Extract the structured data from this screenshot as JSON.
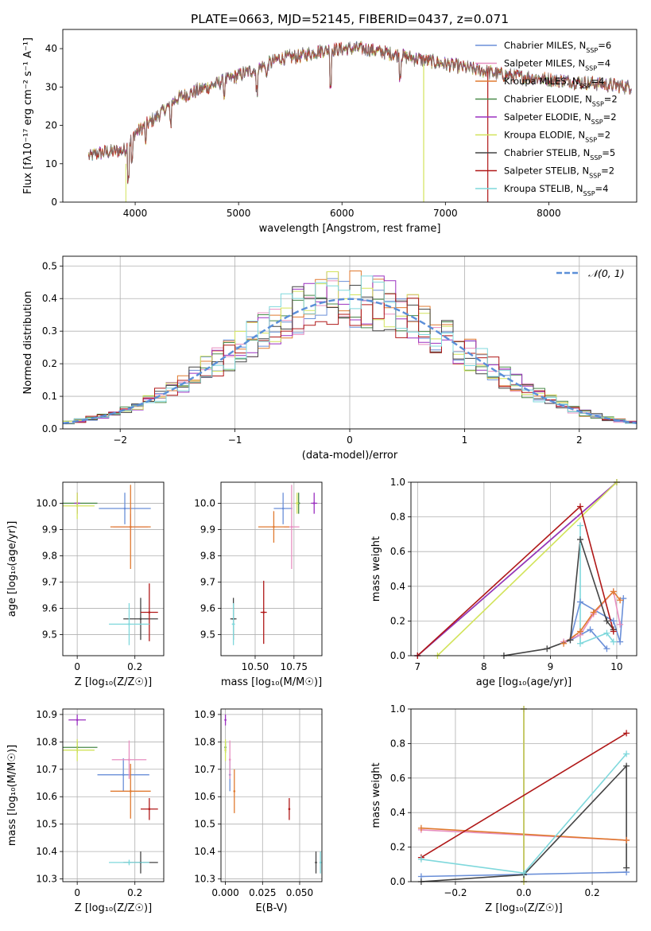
{
  "figure": {
    "title": "PLATE=0663, MJD=52145, FIBERID=0437, z=0.071"
  },
  "palette": {
    "chabrier_miles": "#6a8fd8",
    "salpeter_miles": "#e78fc0",
    "kroupa_miles": "#e07a30",
    "chabrier_elodie": "#4a8a4a",
    "salpeter_elodie": "#9b30c0",
    "kroupa_elodie": "#d2e35a",
    "chabrier_stelib": "#444444",
    "salpeter_stelib": "#b01818",
    "kroupa_stelib": "#7fd8dc",
    "gaussian": "#5b8fd8"
  },
  "chart_data": [
    {
      "id": "spectrum",
      "type": "line",
      "xlabel": "wavelength [Angstrom, rest frame]",
      "ylabel": "Flux [fλ10⁻¹⁷ erg cm⁻² s⁻¹ A⁻¹]",
      "xlim": [
        3300,
        8850
      ],
      "ylim": [
        0,
        45
      ],
      "xticks": [
        4000,
        5000,
        6000,
        7000,
        8000
      ],
      "yticks": [
        0,
        10,
        20,
        30,
        40
      ],
      "grid": false,
      "legend_position": "top-right",
      "legend": [
        {
          "name": "Chabrier MILES, N",
          "sub": "SSP",
          "suffix": "=6",
          "color_key": "chabrier_miles"
        },
        {
          "name": "Salpeter MILES, N",
          "sub": "SSP",
          "suffix": "=4",
          "color_key": "salpeter_miles"
        },
        {
          "name": "Kroupa MILES, N",
          "sub": "SSP",
          "suffix": "=4",
          "color_key": "kroupa_miles"
        },
        {
          "name": "Chabrier ELODIE, N",
          "sub": "SSP",
          "suffix": "=2",
          "color_key": "chabrier_elodie"
        },
        {
          "name": "Salpeter ELODIE, N",
          "sub": "SSP",
          "suffix": "=2",
          "color_key": "salpeter_elodie"
        },
        {
          "name": "Kroupa ELODIE, N",
          "sub": "SSP",
          "suffix": "=2",
          "color_key": "kroupa_elodie"
        },
        {
          "name": "Chabrier STELIB, N",
          "sub": "SSP",
          "suffix": "=5",
          "color_key": "chabrier_stelib"
        },
        {
          "name": "Salpeter STELIB, N",
          "sub": "SSP",
          "suffix": "=2",
          "color_key": "salpeter_stelib"
        },
        {
          "name": "Kroupa STELIB, N",
          "sub": "SSP",
          "suffix": "=4",
          "color_key": "kroupa_stelib"
        }
      ],
      "continuum": [
        [
          3550,
          12
        ],
        [
          3700,
          13
        ],
        [
          3900,
          13.5
        ],
        [
          4000,
          18
        ],
        [
          4200,
          22
        ],
        [
          4400,
          27
        ],
        [
          4600,
          29
        ],
        [
          4800,
          31
        ],
        [
          5000,
          33
        ],
        [
          5200,
          35
        ],
        [
          5400,
          37.5
        ],
        [
          5600,
          38
        ],
        [
          5800,
          39.5
        ],
        [
          6000,
          40
        ],
        [
          6200,
          40
        ],
        [
          6400,
          39
        ],
        [
          6600,
          38
        ],
        [
          6800,
          37
        ],
        [
          7000,
          36
        ],
        [
          7200,
          35
        ],
        [
          7400,
          34
        ],
        [
          7600,
          33
        ],
        [
          7800,
          32.5
        ],
        [
          8000,
          32
        ],
        [
          8200,
          31.5
        ],
        [
          8400,
          31
        ],
        [
          8600,
          30.5
        ],
        [
          8800,
          30
        ]
      ]
    },
    {
      "id": "residuals",
      "type": "line",
      "xlabel": "(data-model)/error",
      "ylabel": "Normed distribution",
      "xlim": [
        -2.5,
        2.5
      ],
      "ylim": [
        0,
        0.53
      ],
      "xticks": [
        -2,
        -1,
        0,
        1,
        2
      ],
      "yticks": [
        0.0,
        0.1,
        0.2,
        0.3,
        0.4,
        0.5
      ],
      "grid": true,
      "legend_position": "top-right",
      "legend_label": "𝒩(0, 1)",
      "hist_bin_width": 0.1
    },
    {
      "id": "age_vs_Z",
      "type": "scatter",
      "xlabel": "Z [log₁₀(Z/Z☉)]",
      "ylabel": "age  [log₁₀(age/yr)]",
      "xlim": [
        -0.05,
        0.3
      ],
      "ylim": [
        9.42,
        10.08
      ],
      "xticks": [
        0.0,
        0.2
      ],
      "yticks": [
        9.5,
        9.6,
        9.7,
        9.8,
        9.9,
        10.0
      ],
      "grid": true,
      "points": [
        {
          "color_key": "chabrier_miles",
          "x": 0.165,
          "y": 9.98,
          "xerr": 0.09,
          "yerr": 0.06
        },
        {
          "color_key": "salpeter_miles",
          "x": 0.185,
          "y": 9.91,
          "xerr": 0.06,
          "yerr": 0.05
        },
        {
          "color_key": "kroupa_miles",
          "x": 0.185,
          "y": 9.91,
          "xerr": 0.07,
          "yerr": 0.16
        },
        {
          "color_key": "chabrier_elodie",
          "x": 0.0,
          "y": 10.0,
          "xerr": 0.07,
          "yerr": 0.01
        },
        {
          "color_key": "salpeter_elodie",
          "x": 0.0,
          "y": 10.0,
          "xerr": 0.01,
          "yerr": 0.04
        },
        {
          "color_key": "kroupa_elodie",
          "x": 0.0,
          "y": 9.99,
          "xerr": 0.06,
          "yerr": 0.05
        },
        {
          "color_key": "chabrier_stelib",
          "x": 0.22,
          "y": 9.56,
          "xerr": 0.06,
          "yerr": 0.08
        },
        {
          "color_key": "salpeter_stelib",
          "x": 0.25,
          "y": 9.585,
          "xerr": 0.03,
          "yerr": 0.11
        },
        {
          "color_key": "kroupa_stelib",
          "x": 0.18,
          "y": 9.54,
          "xerr": 0.07,
          "yerr": 0.08
        }
      ]
    },
    {
      "id": "age_vs_mass",
      "type": "scatter",
      "xlabel": "mass [log₁₀(M/M☉)]",
      "ylabel": "",
      "xlim": [
        10.28,
        10.93
      ],
      "ylim": [
        9.42,
        10.08
      ],
      "xticks": [
        10.5,
        10.75
      ],
      "xticklabels": [
        "10.50",
        "10.75"
      ],
      "yticks": [
        9.5,
        9.6,
        9.7,
        9.8,
        9.9,
        10.0
      ],
      "grid": true,
      "points": [
        {
          "color_key": "chabrier_miles",
          "x": 10.68,
          "y": 9.98,
          "xerr": 0.06,
          "yerr": 0.06
        },
        {
          "color_key": "salpeter_miles",
          "x": 10.735,
          "y": 9.91,
          "xerr": 0.05,
          "yerr": 0.16
        },
        {
          "color_key": "kroupa_miles",
          "x": 10.62,
          "y": 9.91,
          "xerr": 0.1,
          "yerr": 0.06
        },
        {
          "color_key": "chabrier_elodie",
          "x": 10.78,
          "y": 10.0,
          "xerr": 0.01,
          "yerr": 0.04
        },
        {
          "color_key": "salpeter_elodie",
          "x": 10.88,
          "y": 10.0,
          "xerr": 0.02,
          "yerr": 0.04
        },
        {
          "color_key": "kroupa_elodie",
          "x": 10.77,
          "y": 10.0,
          "xerr": 0.01,
          "yerr": 0.04
        },
        {
          "color_key": "chabrier_stelib",
          "x": 10.36,
          "y": 9.56,
          "xerr": 0.02,
          "yerr": 0.08
        },
        {
          "color_key": "salpeter_stelib",
          "x": 10.555,
          "y": 9.585,
          "xerr": 0.02,
          "yerr": 0.12
        },
        {
          "color_key": "kroupa_stelib",
          "x": 10.36,
          "y": 9.54,
          "xerr": 0.01,
          "yerr": 0.08
        }
      ]
    },
    {
      "id": "weight_vs_age",
      "type": "line",
      "xlabel": "age  [log₁₀(age/yr)]",
      "ylabel": "mass weight",
      "xlim": [
        6.9,
        10.3
      ],
      "ylim": [
        0,
        1.0
      ],
      "xticks": [
        7,
        8,
        9,
        10
      ],
      "yticks": [
        0.0,
        0.2,
        0.4,
        0.6,
        0.8,
        1.0
      ],
      "grid": true,
      "series": [
        {
          "color_key": "chabrier_miles",
          "x": [
            9.85,
            9.6,
            9.3,
            9.45,
            9.95,
            10.05,
            10.1
          ],
          "y": [
            0.04,
            0.15,
            0.09,
            0.31,
            0.2,
            0.08,
            0.33
          ]
        },
        {
          "color_key": "salpeter_miles",
          "x": [
            9.2,
            9.45,
            9.65,
            9.95,
            10.05
          ],
          "y": [
            0.08,
            0.12,
            0.24,
            0.37,
            0.18
          ]
        },
        {
          "color_key": "kroupa_miles",
          "x": [
            9.2,
            9.45,
            9.65,
            9.95,
            10.05
          ],
          "y": [
            0.07,
            0.14,
            0.25,
            0.37,
            0.32
          ]
        },
        {
          "color_key": "chabrier_elodie",
          "x": [
            7.0,
            10.0
          ],
          "y": [
            0.0,
            1.0
          ]
        },
        {
          "color_key": "salpeter_elodie",
          "x": [
            7.0,
            10.0
          ],
          "y": [
            0.0,
            1.0
          ]
        },
        {
          "color_key": "kroupa_elodie",
          "x": [
            7.3,
            10.0
          ],
          "y": [
            0.0,
            1.0
          ]
        },
        {
          "color_key": "chabrier_stelib",
          "x": [
            8.3,
            8.95,
            9.3,
            9.45,
            9.85,
            9.95
          ],
          "y": [
            0.0,
            0.04,
            0.09,
            0.67,
            0.2,
            0.15
          ]
        },
        {
          "color_key": "salpeter_stelib",
          "x": [
            7.0,
            9.45,
            9.95
          ],
          "y": [
            0.0,
            0.86,
            0.14
          ]
        },
        {
          "color_key": "kroupa_stelib",
          "x": [
            9.45,
            9.45,
            9.85,
            9.95
          ],
          "y": [
            0.75,
            0.07,
            0.13,
            0.08
          ]
        }
      ]
    },
    {
      "id": "mass_vs_Z",
      "type": "scatter",
      "xlabel": "Z [log₁₀(Z/Z☉)]",
      "ylabel": "mass [log₁₀(M/M☉)]",
      "xlim": [
        -0.05,
        0.3
      ],
      "ylim": [
        10.29,
        10.92
      ],
      "xticks": [
        0.0,
        0.2
      ],
      "yticks": [
        10.3,
        10.4,
        10.5,
        10.6,
        10.7,
        10.8,
        10.9
      ],
      "grid": true,
      "points": [
        {
          "color_key": "chabrier_miles",
          "x": 0.16,
          "y": 10.68,
          "xerr": 0.09,
          "yerr": 0.06
        },
        {
          "color_key": "salpeter_miles",
          "x": 0.18,
          "y": 10.735,
          "xerr": 0.06,
          "yerr": 0.07
        },
        {
          "color_key": "kroupa_miles",
          "x": 0.185,
          "y": 10.62,
          "xerr": 0.07,
          "yerr": 0.1
        },
        {
          "color_key": "chabrier_elodie",
          "x": 0.0,
          "y": 10.78,
          "xerr": 0.07,
          "yerr": 0.02
        },
        {
          "color_key": "salpeter_elodie",
          "x": 0.0,
          "y": 10.88,
          "xerr": 0.03,
          "yerr": 0.02
        },
        {
          "color_key": "kroupa_elodie",
          "x": 0.0,
          "y": 10.77,
          "xerr": 0.06,
          "yerr": 0.04
        },
        {
          "color_key": "chabrier_stelib",
          "x": 0.22,
          "y": 10.36,
          "xerr": 0.06,
          "yerr": 0.04
        },
        {
          "color_key": "salpeter_stelib",
          "x": 0.25,
          "y": 10.555,
          "xerr": 0.03,
          "yerr": 0.04
        },
        {
          "color_key": "kroupa_stelib",
          "x": 0.18,
          "y": 10.36,
          "xerr": 0.07,
          "yerr": 0.01
        }
      ]
    },
    {
      "id": "mass_vs_ebv",
      "type": "scatter",
      "xlabel": "E(B-V)",
      "ylabel": "",
      "xlim": [
        -0.003,
        0.065
      ],
      "ylim": [
        10.29,
        10.92
      ],
      "xticks": [
        0.0,
        0.025,
        0.05
      ],
      "xticklabels": [
        "0.000",
        "0.025",
        "0.050"
      ],
      "yticks": [
        10.3,
        10.4,
        10.5,
        10.6,
        10.7,
        10.8,
        10.9
      ],
      "grid": true,
      "points": [
        {
          "color_key": "chabrier_miles",
          "x": 0.003,
          "y": 10.68,
          "xerr": 0,
          "yerr": 0.06
        },
        {
          "color_key": "salpeter_miles",
          "x": 0.003,
          "y": 10.735,
          "xerr": 0,
          "yerr": 0.07
        },
        {
          "color_key": "kroupa_miles",
          "x": 0.006,
          "y": 10.62,
          "xerr": 0,
          "yerr": 0.08
        },
        {
          "color_key": "chabrier_elodie",
          "x": 0.0,
          "y": 10.78,
          "xerr": 0,
          "yerr": 0.02
        },
        {
          "color_key": "salpeter_elodie",
          "x": 0.0,
          "y": 10.88,
          "xerr": 0,
          "yerr": 0.02
        },
        {
          "color_key": "kroupa_elodie",
          "x": 0.0,
          "y": 10.77,
          "xerr": 0,
          "yerr": 0.04
        },
        {
          "color_key": "chabrier_stelib",
          "x": 0.061,
          "y": 10.36,
          "xerr": 0,
          "yerr": 0.04
        },
        {
          "color_key": "salpeter_stelib",
          "x": 0.043,
          "y": 10.555,
          "xerr": 0,
          "yerr": 0.04
        },
        {
          "color_key": "kroupa_stelib",
          "x": 0.064,
          "y": 10.36,
          "xerr": 0,
          "yerr": 0.04
        }
      ]
    },
    {
      "id": "weight_vs_Z",
      "type": "line",
      "xlabel": "Z [log₁₀(Z/Z☉)]",
      "ylabel": "mass weight",
      "xlim": [
        -0.33,
        0.33
      ],
      "ylim": [
        0,
        1.0
      ],
      "xticks": [
        -0.2,
        0.0,
        0.2
      ],
      "xticklabels": [
        "−0.2",
        "0.0",
        "0.2"
      ],
      "yticks": [
        0.0,
        0.2,
        0.4,
        0.6,
        0.8,
        1.0
      ],
      "grid": true,
      "series": [
        {
          "color_key": "chabrier_miles",
          "x": [
            -0.3,
            0.3
          ],
          "y": [
            0.03,
            0.055
          ]
        },
        {
          "color_key": "salpeter_miles",
          "x": [
            -0.3,
            0.3
          ],
          "y": [
            0.3,
            0.24
          ]
        },
        {
          "color_key": "kroupa_miles",
          "x": [
            -0.3,
            0.3
          ],
          "y": [
            0.31,
            0.24
          ]
        },
        {
          "color_key": "chabrier_elodie",
          "x": [
            0.0,
            0.0
          ],
          "y": [
            0.0,
            1.0
          ]
        },
        {
          "color_key": "salpeter_elodie",
          "x": [
            0.0,
            0.0
          ],
          "y": [
            0.0,
            1.0
          ]
        },
        {
          "color_key": "kroupa_elodie",
          "x": [
            0.0,
            0.0
          ],
          "y": [
            0.0,
            1.0
          ]
        },
        {
          "color_key": "chabrier_stelib",
          "x": [
            -0.3,
            0.0,
            0.3,
            0.3
          ],
          "y": [
            0.0,
            0.04,
            0.67,
            0.08
          ]
        },
        {
          "color_key": "salpeter_stelib",
          "x": [
            -0.3,
            0.3
          ],
          "y": [
            0.14,
            0.86
          ]
        },
        {
          "color_key": "kroupa_stelib",
          "x": [
            -0.3,
            0.0,
            0.3
          ],
          "y": [
            0.13,
            0.05,
            0.74
          ]
        }
      ]
    }
  ]
}
